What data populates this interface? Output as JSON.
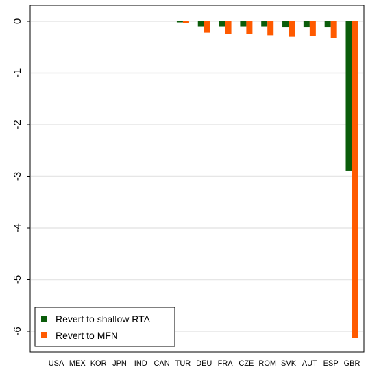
{
  "chart_data": {
    "type": "bar",
    "categories": [
      "USA",
      "MEX",
      "KOR",
      "JPN",
      "IND",
      "CAN",
      "TUR",
      "DEU",
      "FRA",
      "CZE",
      "ROM",
      "SVK",
      "AUT",
      "ESP",
      "GBR"
    ],
    "series": [
      {
        "name": "Revert to shallow RTA",
        "color": "#0a5c0a",
        "values": [
          0,
          0,
          0,
          0,
          0,
          0,
          -0.02,
          -0.1,
          -0.1,
          -0.1,
          -0.1,
          -0.12,
          -0.12,
          -0.12,
          -2.9
        ]
      },
      {
        "name": "Revert to MFN",
        "color": "#ff5a00",
        "values": [
          0,
          0,
          0,
          0,
          0,
          0,
          -0.03,
          -0.22,
          -0.24,
          -0.25,
          -0.27,
          -0.3,
          -0.29,
          -0.33,
          -6.12
        ]
      }
    ],
    "yticks": [
      0,
      -1,
      -2,
      -3,
      -4,
      -5,
      -6
    ],
    "ylim": [
      -6.4,
      0.25
    ],
    "grid": true,
    "legend_position": "bottom-left",
    "xlabel": "",
    "ylabel": ""
  }
}
